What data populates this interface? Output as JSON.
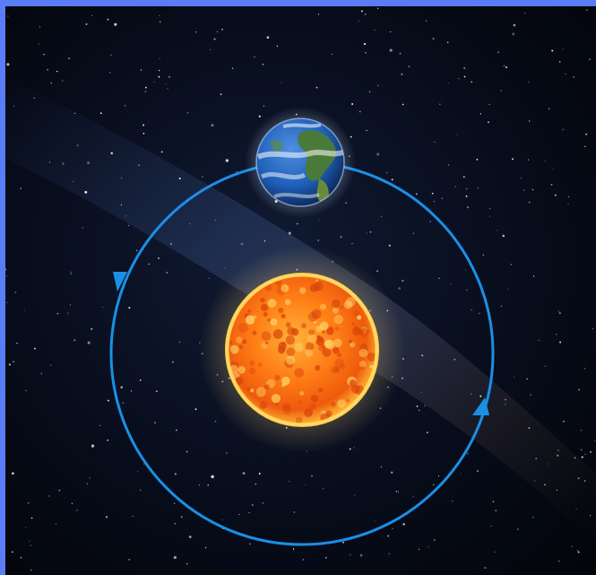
{
  "scene": {
    "subject": "earth-orbiting-sun",
    "orbit_direction": "counterclockwise",
    "colors": {
      "frame": "#5b7cf7",
      "space": "#05080f",
      "orbit": "#1b8fe6",
      "sun_core": "#ffcc3a",
      "sun_mid": "#ff8a12",
      "sun_edge": "#e4410a",
      "earth_ocean": "#1f5fb8",
      "earth_land": "#4a7a3a"
    },
    "icons": {
      "sun": "sun-icon",
      "earth": "earth-icon",
      "orbit_arrow": "arrowhead-icon"
    }
  }
}
